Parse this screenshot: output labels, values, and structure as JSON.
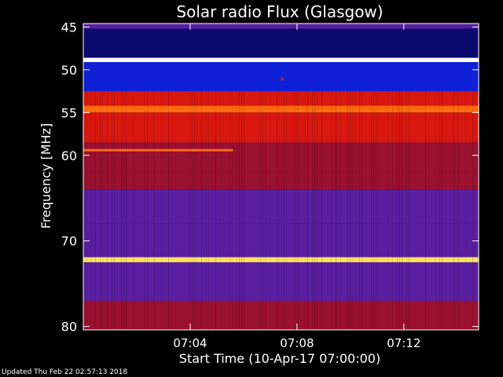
{
  "footer": {
    "updated_text": "Updated Thu Feb 22 02:57:13 2018"
  },
  "chart_data": {
    "type": "heatmap",
    "title": "Solar radio Flux (Glasgow)",
    "xlabel": "Start Time (10-Apr-17 07:00:00)",
    "ylabel": "Frequency [MHz]",
    "x_unit": "minutes after 07:00:00",
    "xlim": [
      0,
      14.8
    ],
    "ylim": [
      44.6,
      80.4
    ],
    "y_reversed": true,
    "x_ticks": [
      {
        "value": 4,
        "label": "07:04"
      },
      {
        "value": 8,
        "label": "07:08"
      },
      {
        "value": 12,
        "label": "07:12"
      }
    ],
    "y_ticks": [
      {
        "value": 45,
        "label": "45"
      },
      {
        "value": 50,
        "label": "50"
      },
      {
        "value": 55,
        "label": "55"
      },
      {
        "value": 60,
        "label": "60"
      },
      {
        "value": 70,
        "label": "70"
      },
      {
        "value": 80,
        "label": "80"
      }
    ],
    "intensity_levels": {
      "dark_blue": "#0a0a6e",
      "blue": "#1020d8",
      "purple": "#5a1ea0",
      "dark_red": "#9a1030",
      "red": "#d81810",
      "orange": "#ff6a10",
      "yellow": "#ffe060",
      "white": "#ffffff"
    },
    "bands": [
      {
        "f_from": 44.6,
        "f_to": 45.2,
        "level": "purple"
      },
      {
        "f_from": 45.2,
        "f_to": 48.6,
        "level": "dark_blue"
      },
      {
        "f_from": 48.6,
        "f_to": 49.1,
        "level": "white"
      },
      {
        "f_from": 49.1,
        "f_to": 52.5,
        "level": "blue"
      },
      {
        "f_from": 52.5,
        "f_to": 53.0,
        "level": "red"
      },
      {
        "f_from": 53.0,
        "f_to": 54.2,
        "level": "red"
      },
      {
        "f_from": 54.2,
        "f_to": 55.0,
        "level": "orange"
      },
      {
        "f_from": 55.0,
        "f_to": 58.5,
        "level": "red"
      },
      {
        "f_from": 58.5,
        "f_to": 62.0,
        "level": "dark_red"
      },
      {
        "f_from": 62.0,
        "f_to": 64.0,
        "level": "dark_red"
      },
      {
        "f_from": 64.0,
        "f_to": 68.0,
        "level": "purple"
      },
      {
        "f_from": 68.0,
        "f_to": 71.9,
        "level": "purple"
      },
      {
        "f_from": 71.9,
        "f_to": 72.5,
        "level": "yellow"
      },
      {
        "f_from": 72.5,
        "f_to": 77.0,
        "level": "purple"
      },
      {
        "f_from": 77.0,
        "f_to": 80.4,
        "level": "dark_red"
      }
    ],
    "features": [
      {
        "x_from": 0,
        "x_to": 5.6,
        "f": 59.4,
        "level": "orange"
      },
      {
        "x_from": 0,
        "x_to": 5.6,
        "f": 54.6,
        "level": "orange"
      },
      {
        "x_from": 7.4,
        "x_to": 7.5,
        "f": 51.1,
        "level": "red"
      }
    ]
  }
}
